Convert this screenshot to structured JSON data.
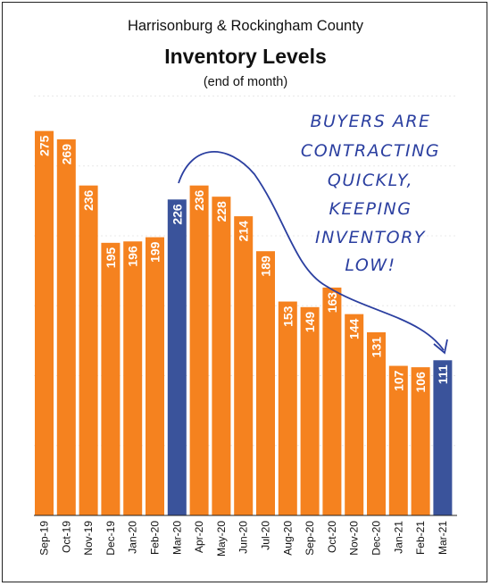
{
  "header": {
    "subtitle_top": "Harrisonburg & Rockingham County",
    "title": "Inventory Levels",
    "subtitle_bottom": "(end of month)"
  },
  "annotation": {
    "lines": [
      "BUYERS ARE",
      "CONTRACTING",
      "QUICKLY,",
      "KEEPING",
      "INVENTORY",
      "LOW!"
    ]
  },
  "colors": {
    "default_bar": "#F5821F",
    "highlight_bar": "#3A539B",
    "annotation": "#2B3FA0"
  },
  "chart_data": {
    "type": "bar",
    "title": "Inventory Levels",
    "subtitle": "(end of month)",
    "categories": [
      "Sep-19",
      "Oct-19",
      "Nov-19",
      "Dec-19",
      "Jan-20",
      "Feb-20",
      "Mar-20",
      "Apr-20",
      "May-20",
      "Jun-20",
      "Jul-20",
      "Aug-20",
      "Sep-20",
      "Oct-20",
      "Nov-20",
      "Dec-20",
      "Jan-21",
      "Feb-21",
      "Mar-21"
    ],
    "values": [
      275,
      269,
      236,
      195,
      196,
      199,
      226,
      236,
      228,
      214,
      189,
      153,
      149,
      163,
      144,
      131,
      107,
      106,
      111
    ],
    "highlighted": [
      "Mar-20",
      "Mar-21"
    ],
    "ylim": [
      0,
      300
    ],
    "grid": true,
    "data_labels": true
  }
}
